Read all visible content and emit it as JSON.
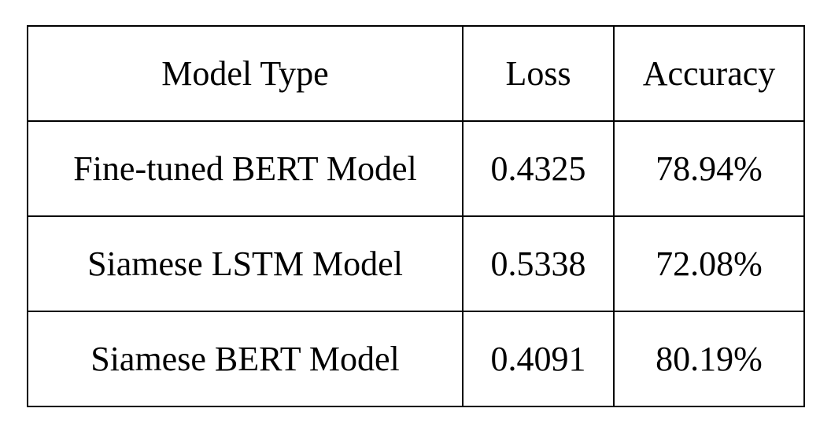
{
  "table": {
    "headers": [
      "Model Type",
      "Loss",
      "Accuracy"
    ],
    "rows": [
      [
        "Fine-tuned BERT Model",
        "0.4325",
        "78.94%"
      ],
      [
        "Siamese LSTM Model",
        "0.5338",
        "72.08%"
      ],
      [
        "Siamese BERT Model",
        "0.4091",
        "80.19%"
      ]
    ]
  }
}
